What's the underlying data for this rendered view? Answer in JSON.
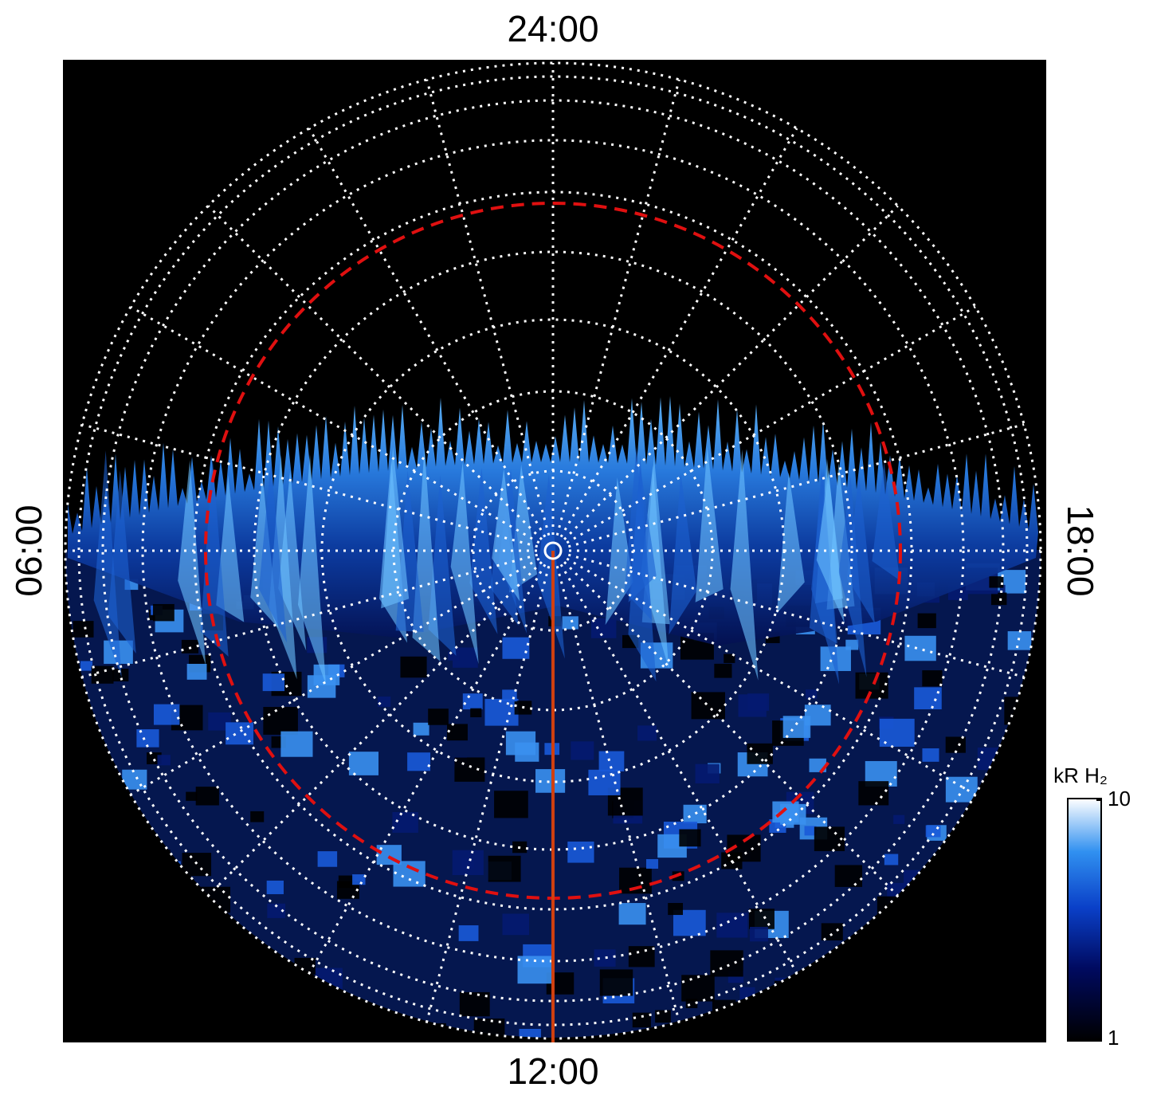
{
  "chart_data": {
    "type": "polar-image",
    "labels": {
      "top": "24:00",
      "bottom": "12:00",
      "left": "06:00",
      "right": "18:00"
    },
    "colorbar": {
      "label": "kR H₂",
      "lim": [
        1,
        10
      ],
      "ticks": [
        1,
        10
      ],
      "log": true
    }
  }
}
